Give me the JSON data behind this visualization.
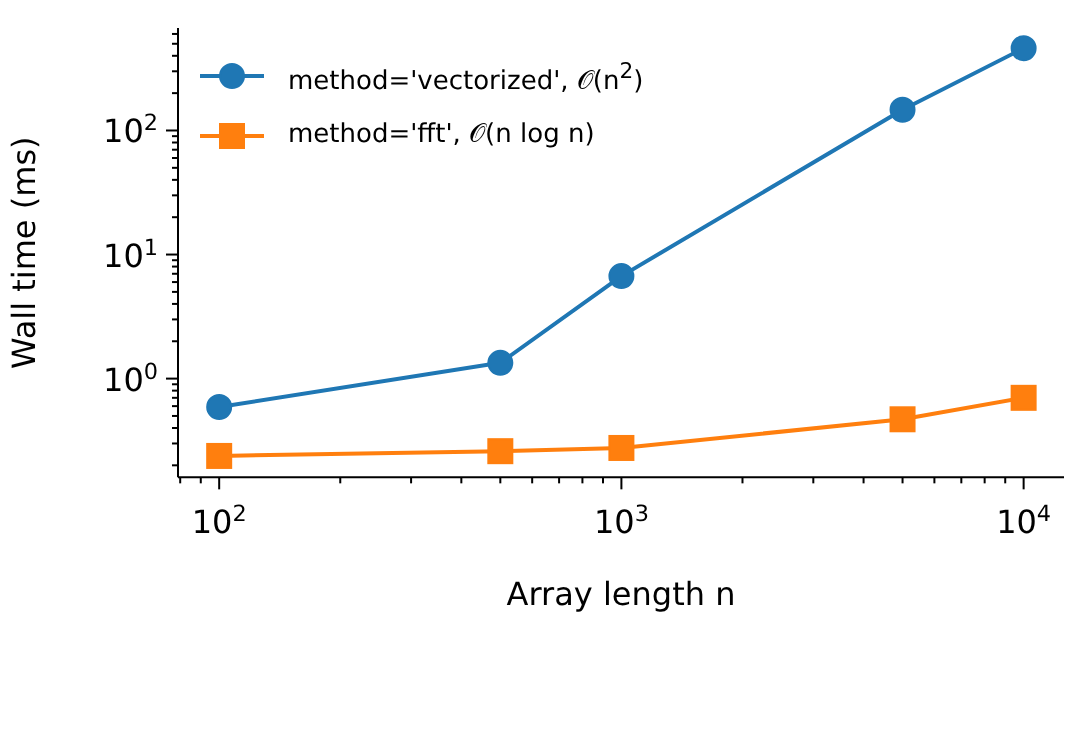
{
  "chart_data": {
    "type": "line",
    "xlabel": "Array length n",
    "ylabel": "Wall time (ms)",
    "x": [
      100,
      500,
      1000,
      5000,
      10000
    ],
    "series": [
      {
        "name": "method='vectorized', 𝒪(n$^{2}$)",
        "color": "#1f77b4",
        "marker": "circle",
        "values": [
          0.59,
          1.34,
          6.7,
          147,
          460
        ]
      },
      {
        "name": "method='fft', 𝒪(n log n)",
        "color": "#ff7f0e",
        "marker": "square",
        "values": [
          0.238,
          0.26,
          0.276,
          0.47,
          0.7
        ]
      }
    ],
    "log": "xy",
    "xlim": [
      79,
      12600
    ],
    "ylim": [
      0.16,
      670
    ],
    "xticks": [
      {
        "value": 80,
        "label": null
      },
      {
        "value": 90,
        "label": null
      },
      {
        "value": 100,
        "label": "10$^{2}$"
      },
      {
        "value": 200,
        "label": null
      },
      {
        "value": 300,
        "label": null
      },
      {
        "value": 400,
        "label": null
      },
      {
        "value": 500,
        "label": null
      },
      {
        "value": 600,
        "label": null
      },
      {
        "value": 700,
        "label": null
      },
      {
        "value": 800,
        "label": null
      },
      {
        "value": 900,
        "label": null
      },
      {
        "value": 1000,
        "label": "10$^{3}$"
      },
      {
        "value": 2000,
        "label": null
      },
      {
        "value": 3000,
        "label": null
      },
      {
        "value": 4000,
        "label": null
      },
      {
        "value": 5000,
        "label": null
      },
      {
        "value": 6000,
        "label": null
      },
      {
        "value": 7000,
        "label": null
      },
      {
        "value": 8000,
        "label": null
      },
      {
        "value": 9000,
        "label": null
      },
      {
        "value": 10000,
        "label": "10$^{4}$"
      }
    ],
    "yticks": [
      {
        "value": 0.2,
        "label": null
      },
      {
        "value": 0.3,
        "label": null
      },
      {
        "value": 0.4,
        "label": null
      },
      {
        "value": 0.5,
        "label": null
      },
      {
        "value": 0.6,
        "label": null
      },
      {
        "value": 0.7,
        "label": null
      },
      {
        "value": 0.8,
        "label": null
      },
      {
        "value": 0.9,
        "label": null
      },
      {
        "value": 1,
        "label": "10$^{0}$"
      },
      {
        "value": 2,
        "label": null
      },
      {
        "value": 3,
        "label": null
      },
      {
        "value": 4,
        "label": null
      },
      {
        "value": 5,
        "label": null
      },
      {
        "value": 6,
        "label": null
      },
      {
        "value": 7,
        "label": null
      },
      {
        "value": 8,
        "label": null
      },
      {
        "value": 9,
        "label": null
      },
      {
        "value": 10,
        "label": "10$^{1}$"
      },
      {
        "value": 20,
        "label": null
      },
      {
        "value": 30,
        "label": null
      },
      {
        "value": 40,
        "label": null
      },
      {
        "value": 50,
        "label": null
      },
      {
        "value": 60,
        "label": null
      },
      {
        "value": 70,
        "label": null
      },
      {
        "value": 80,
        "label": null
      },
      {
        "value": 90,
        "label": null
      },
      {
        "value": 100,
        "label": "10$^{2}$"
      },
      {
        "value": 200,
        "label": null
      },
      {
        "value": 300,
        "label": null
      },
      {
        "value": 400,
        "label": null
      },
      {
        "value": 500,
        "label": null
      },
      {
        "value": 600,
        "label": null
      }
    ],
    "grid": false,
    "legend": "top left",
    "line_style": "solid"
  }
}
